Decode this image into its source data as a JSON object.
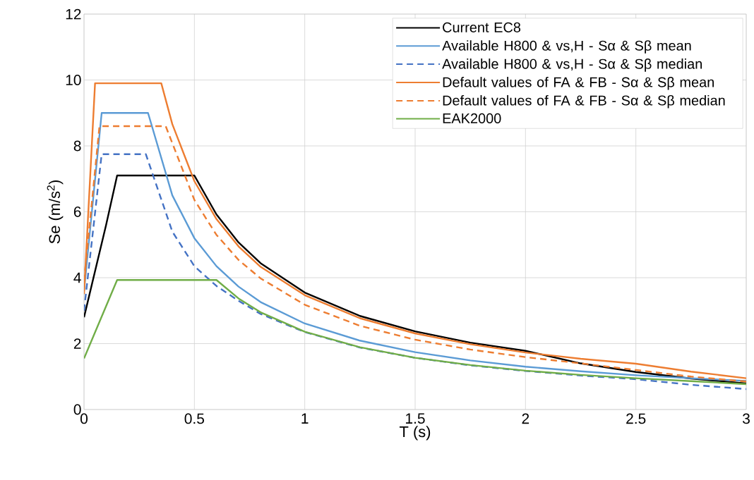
{
  "chart_data": {
    "type": "line",
    "xlabel": "T (s)",
    "ylabel": "Se (m/s$^{2}$)",
    "xlim": [
      0,
      3
    ],
    "ylim": [
      0,
      12
    ],
    "xticks": [
      0,
      0.5,
      1,
      1.5,
      2,
      2.5,
      3
    ],
    "yticks": [
      0,
      2,
      4,
      6,
      8,
      10,
      12
    ],
    "grid": true,
    "legend": "top right",
    "series": [
      {
        "name": "Current EC8",
        "color": "#000000",
        "x": [
          0,
          0.1,
          0.15,
          0.5,
          0.6,
          0.7,
          0.8,
          1,
          1.25,
          1.5,
          1.75,
          2,
          2.25,
          2.5,
          2.75,
          3
        ],
        "values": [
          2.8,
          5.6,
          7.1,
          7.1,
          5.92,
          5.07,
          4.44,
          3.55,
          2.84,
          2.37,
          2.03,
          1.78,
          1.4,
          1.14,
          0.94,
          0.79
        ]
      },
      {
        "name": "Available H800 & vs,H  - Sα & Sβ mean",
        "color": "#5b9bd5",
        "x": [
          0,
          0.08,
          0.29,
          0.4,
          0.5,
          0.6,
          0.7,
          0.8,
          1,
          1.25,
          1.5,
          1.75,
          2,
          2.25,
          2.5,
          2.75,
          3
        ],
        "values": [
          3.6,
          9.0,
          9.0,
          6.5,
          5.2,
          4.35,
          3.73,
          3.26,
          2.61,
          2.09,
          1.74,
          1.49,
          1.3,
          1.16,
          1.04,
          0.95,
          0.87
        ]
      },
      {
        "name": "Available H800 & vs,H  - Sα & Sβ median",
        "color": "#4472c4",
        "line_style": "dashed",
        "x": [
          0,
          0.08,
          0.28,
          0.4,
          0.5,
          0.6,
          0.7,
          0.8,
          1,
          1.25,
          1.5,
          1.75,
          2,
          2.25,
          2.5,
          2.75,
          3
        ],
        "values": [
          3.0,
          7.75,
          7.75,
          5.4,
          4.35,
          3.75,
          3.3,
          2.9,
          2.35,
          1.88,
          1.57,
          1.34,
          1.17,
          1.03,
          0.92,
          0.75,
          0.62
        ]
      },
      {
        "name": "Default values of FA & FB - Sα & Sβ mean",
        "color": "#ed7d31",
        "x": [
          0,
          0.05,
          0.35,
          0.4,
          0.5,
          0.6,
          0.7,
          0.8,
          1,
          1.25,
          1.5,
          1.75,
          2,
          2.25,
          2.5,
          2.75,
          3
        ],
        "values": [
          3.5,
          9.9,
          9.9,
          8.66,
          6.93,
          5.78,
          4.95,
          4.33,
          3.47,
          2.77,
          2.31,
          1.98,
          1.73,
          1.54,
          1.39,
          1.15,
          0.95
        ]
      },
      {
        "name": "Default values of FA & FB - Sα & Sβ median",
        "color": "#ed7d31",
        "line_style": "dashed",
        "x": [
          0,
          0.07,
          0.37,
          0.5,
          0.6,
          0.7,
          0.8,
          1,
          1.25,
          1.5,
          1.75,
          2,
          2.25,
          2.5,
          2.75,
          3
        ],
        "values": [
          3.9,
          8.6,
          8.6,
          6.36,
          5.3,
          4.54,
          3.98,
          3.18,
          2.54,
          2.12,
          1.82,
          1.59,
          1.4,
          1.2,
          1.0,
          0.85
        ]
      },
      {
        "name": "EAK2000",
        "color": "#70ad47",
        "x": [
          0,
          0.15,
          0.6,
          0.7,
          0.8,
          1,
          1.25,
          1.5,
          1.75,
          2,
          2.25,
          2.5,
          2.75,
          3
        ],
        "values": [
          1.55,
          3.93,
          3.93,
          3.37,
          2.95,
          2.36,
          1.89,
          1.57,
          1.35,
          1.18,
          1.05,
          0.95,
          0.86,
          0.77
        ]
      }
    ]
  }
}
